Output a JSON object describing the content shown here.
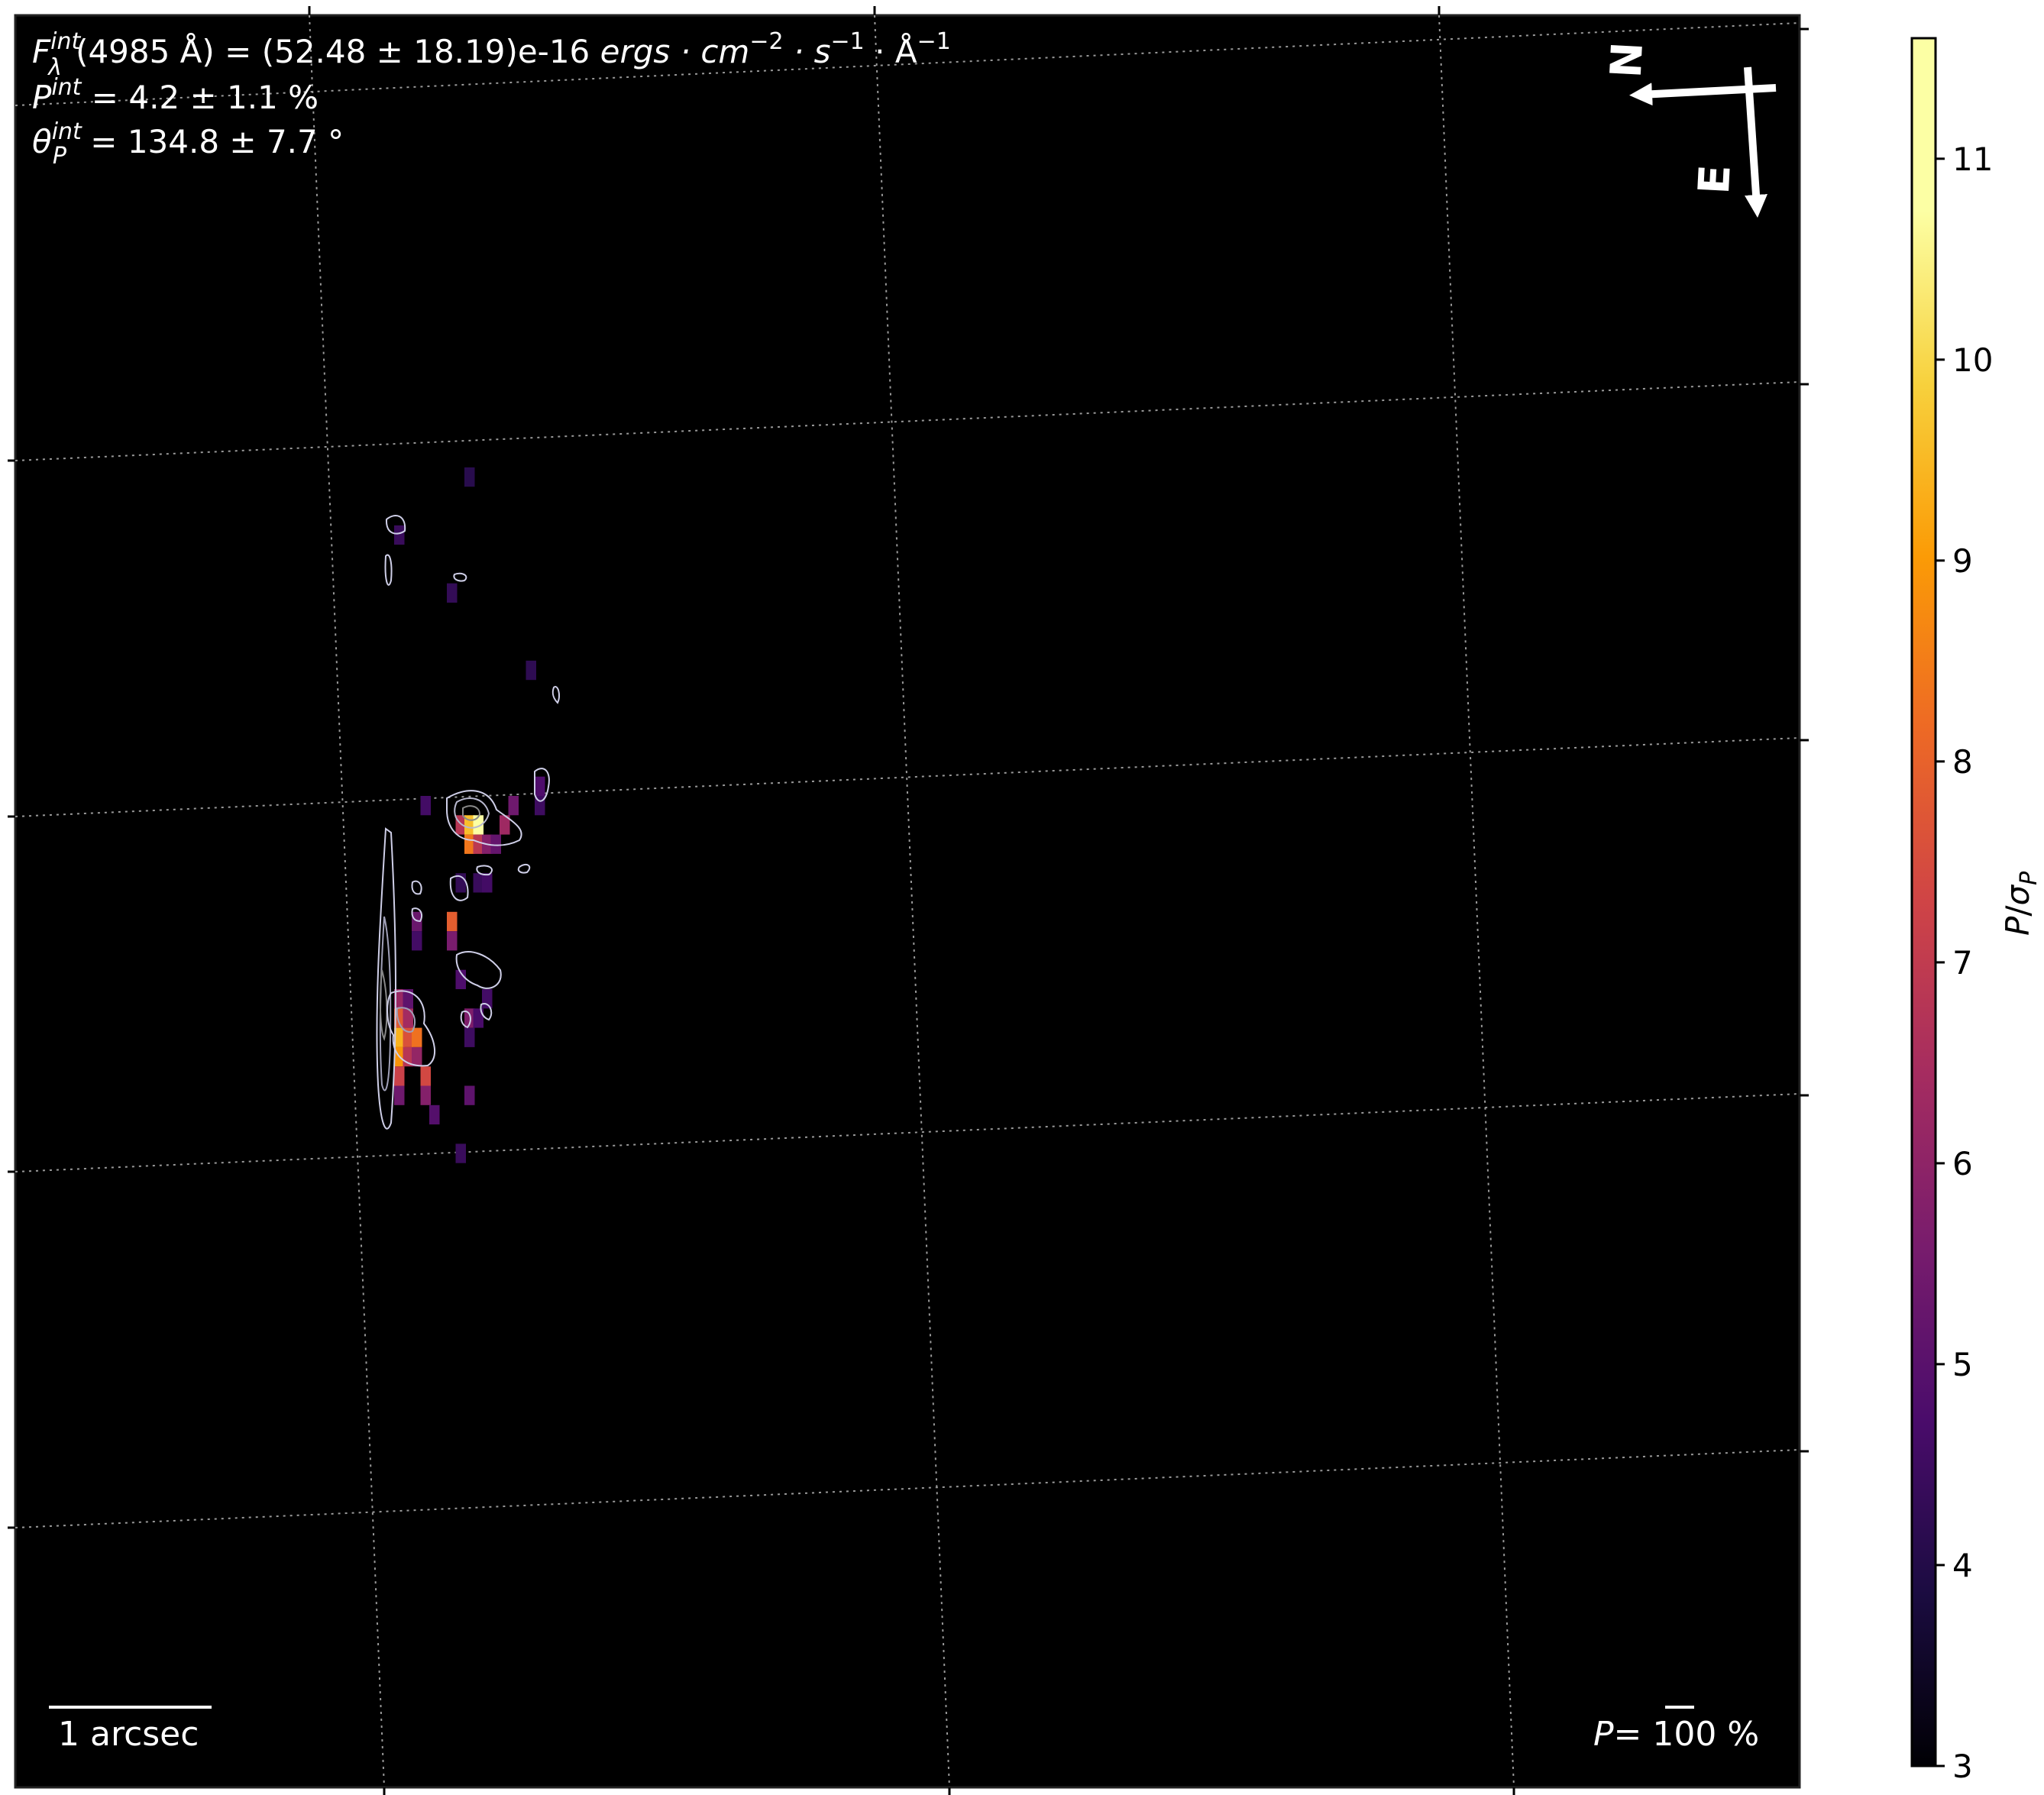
{
  "chart_data": {
    "type": "heatmap",
    "title": "",
    "annotations": {
      "flux_line": {
        "label_F": "F",
        "sup_int": "int",
        "sub_lambda": "λ",
        "wavelength": "(4985 Å)",
        "equals_value": " = (52.48 ± 18.19)e-16 ",
        "units": "ergs · cm",
        "exp_cm": "−2",
        "units_s": " · s",
        "exp_s": "−1",
        "units_A": " · Å",
        "exp_A": "−1"
      },
      "pol_line": {
        "label": "P",
        "sup_int": "int",
        "value": " = 4.2 ± 1.1 %"
      },
      "angle_line": {
        "label": "θ",
        "sup_int": "int",
        "sub_P": "P",
        "value": " = 134.8 ± 7.7 °"
      },
      "scale_bar": "1 arcsec",
      "vector_scale_P": "P",
      "vector_scale_value": "= 100 %"
    },
    "compass": {
      "north": "N",
      "east": "E"
    },
    "colorbar": {
      "label_P": "P",
      "label_sigma": "σ",
      "label_sub": "P",
      "range": [
        3,
        11.6
      ],
      "ticks": [
        "3",
        "4",
        "5",
        "6",
        "7",
        "8",
        "9",
        "10",
        "11"
      ],
      "colormap": "inferno"
    },
    "grid": true,
    "background_color": "#000000",
    "pixels": [
      {
        "col": 46,
        "row": 50,
        "value": 6.2
      },
      {
        "col": 46,
        "row": 51,
        "value": 7.8
      },
      {
        "col": 46,
        "row": 52,
        "value": 9.4
      },
      {
        "col": 46,
        "row": 53,
        "value": 8.9
      },
      {
        "col": 46,
        "row": 54,
        "value": 7.2
      },
      {
        "col": 46,
        "row": 55,
        "value": 5.4
      },
      {
        "col": 47,
        "row": 50,
        "value": 5.1
      },
      {
        "col": 47,
        "row": 51,
        "value": 6.4
      },
      {
        "col": 47,
        "row": 52,
        "value": 7.6
      },
      {
        "col": 47,
        "row": 53,
        "value": 6.8
      },
      {
        "col": 48,
        "row": 52,
        "value": 8.3
      },
      {
        "col": 48,
        "row": 53,
        "value": 6.1
      },
      {
        "col": 49,
        "row": 54,
        "value": 7.4
      },
      {
        "col": 49,
        "row": 55,
        "value": 5.8
      },
      {
        "col": 50,
        "row": 56,
        "value": 4.9
      },
      {
        "col": 48,
        "row": 46,
        "value": 5.3
      },
      {
        "col": 48,
        "row": 47,
        "value": 4.6
      },
      {
        "col": 52,
        "row": 46,
        "value": 7.9
      },
      {
        "col": 52,
        "row": 47,
        "value": 5.6
      },
      {
        "col": 53,
        "row": 49,
        "value": 4.8
      },
      {
        "col": 54,
        "row": 51,
        "value": 5.7
      },
      {
        "col": 54,
        "row": 52,
        "value": 4.5
      },
      {
        "col": 54,
        "row": 55,
        "value": 5.1
      },
      {
        "col": 53,
        "row": 58,
        "value": 4.4
      },
      {
        "col": 55,
        "row": 51,
        "value": 4.7
      },
      {
        "col": 56,
        "row": 50,
        "value": 4.6
      },
      {
        "col": 53,
        "row": 41,
        "value": 6.8
      },
      {
        "col": 54,
        "row": 41,
        "value": 9.6
      },
      {
        "col": 55,
        "row": 41,
        "value": 11.2
      },
      {
        "col": 54,
        "row": 42,
        "value": 8.4
      },
      {
        "col": 55,
        "row": 42,
        "value": 6.9
      },
      {
        "col": 56,
        "row": 42,
        "value": 5.8
      },
      {
        "col": 57,
        "row": 42,
        "value": 5.2
      },
      {
        "col": 58,
        "row": 41,
        "value": 6.3
      },
      {
        "col": 59,
        "row": 40,
        "value": 5.4
      },
      {
        "col": 62,
        "row": 39,
        "value": 4.8
      },
      {
        "col": 62,
        "row": 40,
        "value": 4.5
      },
      {
        "col": 49,
        "row": 40,
        "value": 4.6
      },
      {
        "col": 53,
        "row": 44,
        "value": 4.3
      },
      {
        "col": 55,
        "row": 44,
        "value": 4.4
      },
      {
        "col": 56,
        "row": 44,
        "value": 4.6
      },
      {
        "col": 46,
        "row": 26,
        "value": 4.4
      },
      {
        "col": 52,
        "row": 29,
        "value": 4.3
      },
      {
        "col": 61,
        "row": 33,
        "value": 4.2
      },
      {
        "col": 54,
        "row": 23,
        "value": 4.1
      }
    ]
  }
}
